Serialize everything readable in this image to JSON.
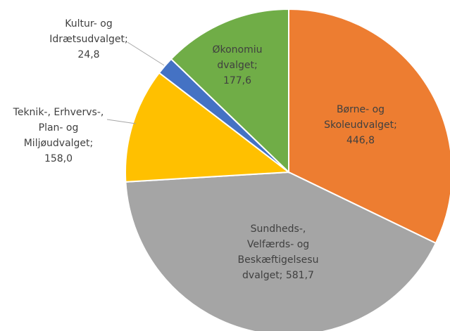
{
  "chart_data": {
    "type": "pie",
    "slices": [
      {
        "label": [
          "Børne- og",
          "Skoleudvalget;",
          "446,8"
        ],
        "value": 446.8,
        "color": "#ED7D31"
      },
      {
        "label": [
          "Sundheds-,",
          "Velfærds- og",
          "Beskæftigelsesu",
          "dvalget; 581,7"
        ],
        "value": 581.7,
        "color": "#A5A5A5"
      },
      {
        "label": [
          "Teknik-, Erhvervs-,",
          "Plan- og",
          "Miljøudvalget;",
          "158,0"
        ],
        "value": 158.0,
        "color": "#FFC000"
      },
      {
        "label": [
          "Kultur- og",
          "Idrætsudvalget;",
          "24,8"
        ],
        "value": 24.8,
        "color": "#4472C4"
      },
      {
        "label": [
          "Økonomiu",
          "dvalget;",
          "177,6"
        ],
        "value": 177.6,
        "color": "#70AD47"
      }
    ],
    "legend": "none"
  }
}
